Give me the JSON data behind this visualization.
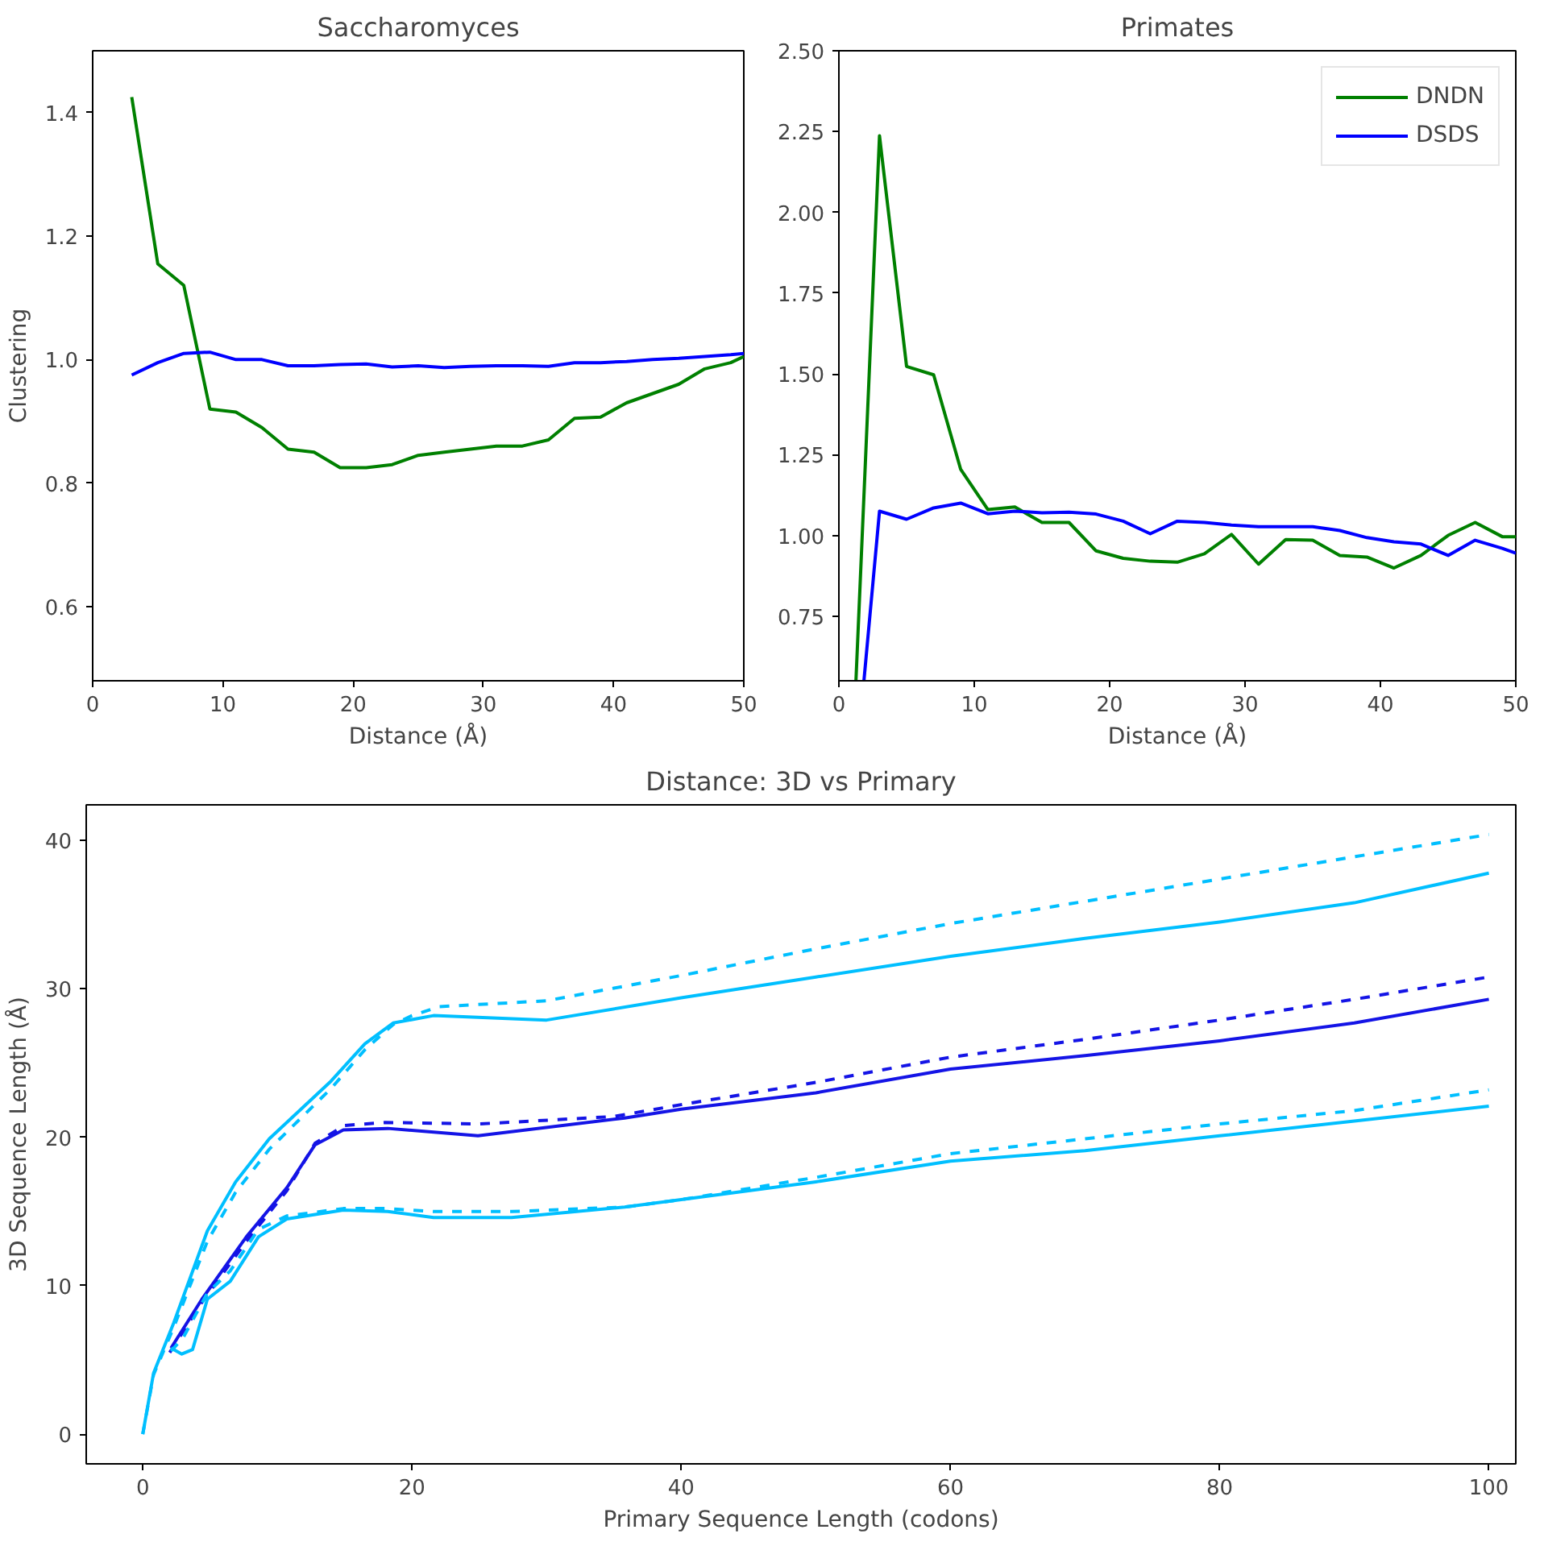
{
  "chart_data": [
    {
      "type": "line",
      "title": "Saccharomyces",
      "xlabel": "Distance (Å)",
      "ylabel": "Clustering",
      "x": [
        3,
        5,
        7,
        9,
        11,
        13,
        15,
        17,
        19,
        21,
        23,
        25,
        27,
        29,
        31,
        33,
        35,
        37,
        39,
        41,
        43,
        45,
        47,
        49,
        50
      ],
      "series": [
        {
          "color": "#008000",
          "values": [
            1.425,
            1.155,
            1.12,
            0.92,
            0.915,
            0.89,
            0.855,
            0.85,
            0.825,
            0.825,
            0.83,
            0.845,
            0.85,
            0.855,
            0.86,
            0.86,
            0.87,
            0.905,
            0.907,
            0.93,
            0.945,
            0.96,
            0.985,
            0.995,
            1.005
          ]
        },
        {
          "color": "#0000ff",
          "values": [
            0.975,
            0.995,
            1.01,
            1.012,
            1.0,
            1.0,
            0.99,
            0.99,
            0.992,
            0.993,
            0.988,
            0.99,
            0.987,
            0.989,
            0.99,
            0.99,
            0.989,
            0.995,
            0.995,
            0.997,
            1.0,
            1.002,
            1.005,
            1.008,
            1.01
          ]
        }
      ],
      "xlim": [
        0,
        50
      ],
      "ylim": [
        0.48,
        1.5
      ],
      "xticks": [
        0,
        10,
        20,
        30,
        40,
        50
      ],
      "yticks": [
        {
          "value": 0.6,
          "label": "0.6"
        },
        {
          "value": 0.8,
          "label": "0.8"
        },
        {
          "value": 1.0,
          "label": "1.0"
        },
        {
          "value": 1.2,
          "label": "1.2"
        },
        {
          "value": 1.4,
          "label": "1.4"
        }
      ],
      "grid": false,
      "legend": false
    },
    {
      "type": "line",
      "title": "Primates",
      "xlabel": "Distance (Å)",
      "series": [
        {
          "name": "DNDN",
          "color": "#008000",
          "x": [
            1.26,
            3,
            5,
            7,
            9,
            11,
            13,
            15,
            17,
            19,
            21,
            23,
            25,
            27,
            29,
            31,
            33,
            35,
            37,
            39,
            41,
            43,
            45,
            47,
            49,
            50
          ],
          "values": [
            0.55,
            2.237,
            1.523,
            1.497,
            1.204,
            1.08,
            1.088,
            1.04,
            1.04,
            0.952,
            0.929,
            0.92,
            0.917,
            0.943,
            1.003,
            0.911,
            0.987,
            0.985,
            0.938,
            0.933,
            0.899,
            0.938,
            1.0,
            1.04,
            0.996,
            0.996
          ]
        },
        {
          "name": "DSDS",
          "color": "#0000ff",
          "x": [
            1.85,
            3,
            5,
            7,
            9,
            11,
            13,
            15,
            17,
            19,
            21,
            23,
            25,
            27,
            29,
            31,
            33,
            35,
            37,
            39,
            41,
            43,
            45,
            47,
            49,
            50
          ],
          "values": [
            0.55,
            1.075,
            1.05,
            1.085,
            1.1,
            1.067,
            1.075,
            1.07,
            1.072,
            1.066,
            1.044,
            1.005,
            1.044,
            1.04,
            1.032,
            1.027,
            1.027,
            1.027,
            1.015,
            0.993,
            0.98,
            0.973,
            0.938,
            0.985,
            0.96,
            0.945
          ]
        }
      ],
      "xlim": [
        0,
        50
      ],
      "ylim": [
        0.55,
        2.5
      ],
      "xticks": [
        0,
        10,
        20,
        30,
        40,
        50
      ],
      "yticks": [
        {
          "value": 0.75,
          "label": "0.75"
        },
        {
          "value": 1.0,
          "label": "1.00"
        },
        {
          "value": 1.25,
          "label": "1.25"
        },
        {
          "value": 1.5,
          "label": "1.50"
        },
        {
          "value": 1.75,
          "label": "1.75"
        },
        {
          "value": 2.0,
          "label": "2.00"
        },
        {
          "value": 2.25,
          "label": "2.25"
        },
        {
          "value": 2.5,
          "label": "2.50"
        }
      ],
      "grid": false,
      "legend": "top right"
    },
    {
      "type": "line",
      "title": "Distance: 3D vs Primary",
      "xlabel": "Primary Sequence Length (codons)",
      "ylabel": "3D Sequence Length (Å)",
      "series": [
        {
          "color": "#00bfff",
          "line_style": "solid",
          "x": [
            0,
            0.8,
            2.3,
            4.8,
            6.9,
            9.4,
            14,
            16.5,
            18.6,
            21.6,
            30,
            40,
            50,
            60,
            70,
            80,
            90,
            100
          ],
          "values": [
            0,
            4.1,
            7.5,
            13.7,
            17.0,
            19.9,
            23.8,
            26.3,
            27.7,
            28.2,
            27.9,
            29.4,
            30.8,
            32.2,
            33.4,
            34.5,
            35.8,
            37.8
          ]
        },
        {
          "color": "#00bfff",
          "line_style": "dashed",
          "x": [
            0,
            0.8,
            2.3,
            4.8,
            6.9,
            9.4,
            14,
            16.5,
            18.6,
            20,
            22,
            30,
            40,
            50,
            60,
            70,
            80,
            90,
            100
          ],
          "values": [
            0,
            4.0,
            7.2,
            13.0,
            16.3,
            19.2,
            23.3,
            25.9,
            27.6,
            28.2,
            28.8,
            29.2,
            30.9,
            32.7,
            34.4,
            35.9,
            37.4,
            38.9,
            40.4
          ]
        },
        {
          "color": "#1414e6",
          "line_style": "solid",
          "x": [
            2.1,
            4.4,
            7.7,
            10.7,
            12.8,
            14.9,
            18.2,
            24.9,
            35.8,
            40,
            50,
            60,
            70,
            80,
            90,
            100
          ],
          "values": [
            5.8,
            9.1,
            13.3,
            16.6,
            19.5,
            20.5,
            20.6,
            20.1,
            21.3,
            21.9,
            23.0,
            24.6,
            25.5,
            26.5,
            27.7,
            29.3
          ]
        },
        {
          "color": "#1414e6",
          "line_style": "dashed",
          "x": [
            2,
            4.4,
            7.7,
            10.7,
            12.8,
            15,
            18,
            25,
            35,
            40,
            50,
            60,
            70,
            80,
            90,
            100
          ],
          "values": [
            5.5,
            8.9,
            13.0,
            16.4,
            19.6,
            20.8,
            21.0,
            20.9,
            21.4,
            22.2,
            23.7,
            25.4,
            26.6,
            27.9,
            29.3,
            30.8
          ]
        },
        {
          "color": "#00bfff",
          "line_style": "solid",
          "x": [
            2.1,
            2.9,
            3.7,
            4.8,
            6.5,
            8.6,
            10.7,
            14.9,
            18.2,
            21.6,
            27.4,
            35.8,
            40,
            50,
            60,
            70,
            80,
            90,
            100
          ],
          "values": [
            5.8,
            5.4,
            5.7,
            9.1,
            10.3,
            13.3,
            14.5,
            15.1,
            15.0,
            14.6,
            14.6,
            15.3,
            15.8,
            17.0,
            18.4,
            19.1,
            20.1,
            21.1,
            22.1
          ]
        },
        {
          "color": "#00bfff",
          "line_style": "dashed",
          "x": [
            2.1,
            3,
            4.8,
            6.5,
            8.6,
            10.7,
            14.9,
            18.2,
            21.6,
            27.4,
            35.8,
            40,
            50,
            60,
            70,
            80,
            90,
            100
          ],
          "values": [
            5.6,
            6.5,
            9.5,
            11.0,
            13.8,
            14.7,
            15.2,
            15.2,
            15.0,
            15.0,
            15.3,
            15.8,
            17.3,
            18.9,
            19.9,
            20.9,
            21.8,
            23.2
          ]
        }
      ],
      "xlim": [
        -4.2,
        102
      ],
      "ylim": [
        -2.0,
        42.4
      ],
      "xticks": [
        0,
        20,
        40,
        60,
        80,
        100
      ],
      "yticks": [
        0,
        10,
        20,
        30,
        40
      ],
      "grid": false,
      "legend": false
    }
  ]
}
